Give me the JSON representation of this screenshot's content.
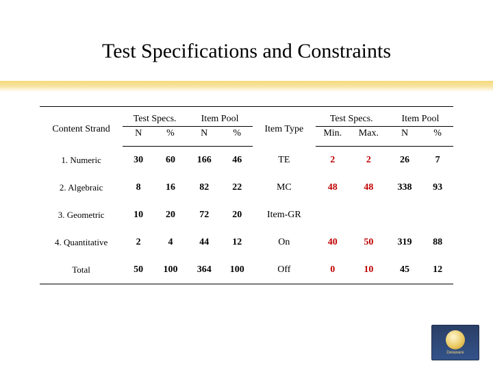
{
  "title": "Test Specifications and Constraints",
  "accent_color": "#f5d97a",
  "headers": {
    "content_strand": "Content Strand",
    "test_specs": "Test Specs.",
    "item_pool": "Item Pool",
    "item_type": "Item Type",
    "n": "N",
    "pct": "%",
    "min": "Min.",
    "max": "Max."
  },
  "left_rows": [
    {
      "label": "1. Numeric",
      "tsN": "30",
      "tsP": "60",
      "ipN": "166",
      "ipP": "46"
    },
    {
      "label": "2. Algebraic",
      "tsN": "8",
      "tsP": "16",
      "ipN": "82",
      "ipP": "22"
    },
    {
      "label": "3. Geometric",
      "tsN": "10",
      "tsP": "20",
      "ipN": "72",
      "ipP": "20"
    },
    {
      "label": "4. Quantitative",
      "tsN": "2",
      "tsP": "4",
      "ipN": "44",
      "ipP": "12"
    },
    {
      "label": "Total",
      "tsN": "50",
      "tsP": "100",
      "ipN": "364",
      "ipP": "100"
    }
  ],
  "right_rows": [
    {
      "label": "TE",
      "min": "2",
      "max": "2",
      "ipN": "26",
      "ipP": "7",
      "styled": true
    },
    {
      "label": "MC",
      "min": "48",
      "max": "48",
      "ipN": "338",
      "ipP": "93",
      "styled": true
    },
    {
      "label": "Item-GR",
      "min": "",
      "max": "",
      "ipN": "",
      "ipP": "",
      "styled": false
    },
    {
      "label": "On",
      "min": "40",
      "max": "50",
      "ipN": "319",
      "ipP": "88",
      "styled": true
    },
    {
      "label": "Off",
      "min": "0",
      "max": "10",
      "ipN": "45",
      "ipP": "12",
      "styled": true
    }
  ],
  "logo_text": "Delaware",
  "col_widths": {
    "strand": "106",
    "c1": "40",
    "c2": "42",
    "c3": "44",
    "c4": "40",
    "type": "80",
    "c5": "44",
    "c6": "48",
    "c7": "44",
    "c8": "40"
  }
}
